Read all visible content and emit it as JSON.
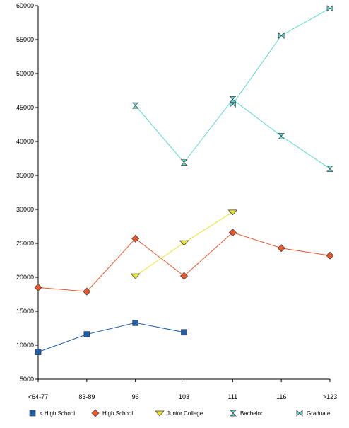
{
  "chart_data": {
    "type": "line",
    "categories": [
      "<64-77",
      "83-89",
      "96",
      "103",
      "111",
      "116",
      ">123"
    ],
    "ylim": [
      5000,
      60000
    ],
    "yticks": [
      5000,
      10000,
      15000,
      20000,
      25000,
      30000,
      35000,
      40000,
      45000,
      50000,
      55000,
      60000
    ],
    "grid": false,
    "legend_position": "bottom",
    "series": [
      {
        "name": "< High School",
        "color": "#1f5fa8",
        "marker": "square",
        "values": [
          9000,
          11600,
          13300,
          11900,
          null,
          null,
          null
        ]
      },
      {
        "name": "High School",
        "color": "#e8562a",
        "marker": "diamond",
        "values": [
          18500,
          17900,
          25700,
          20200,
          26600,
          24300,
          23200
        ]
      },
      {
        "name": "Junior College",
        "color": "#e9e42d",
        "marker": "triangle-down",
        "values": [
          null,
          null,
          20200,
          25100,
          29600,
          null,
          null
        ]
      },
      {
        "name": "Bachelor",
        "color": "#5fd9d3",
        "marker": "hourglass",
        "values": [
          null,
          null,
          45300,
          36900,
          46200,
          40800,
          36000
        ]
      },
      {
        "name": "Graduate",
        "color": "#5fd9d3",
        "marker": "bowtie",
        "values": [
          null,
          null,
          null,
          null,
          45500,
          55600,
          59600
        ]
      }
    ]
  }
}
